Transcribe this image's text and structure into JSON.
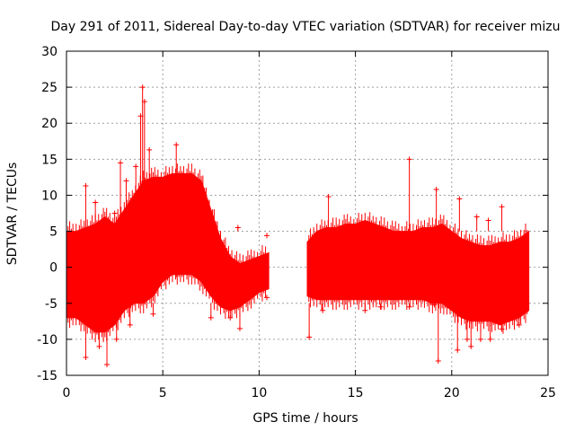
{
  "chart_data": {
    "type": "scatter",
    "title": "Day 291 of 2011, Sidereal Day-to-day VTEC variation (SDTVAR) for receiver mizu",
    "xlabel": "GPS time / hours",
    "ylabel": "SDTVAR / TECUs",
    "xlim": [
      0,
      25
    ],
    "ylim": [
      -15,
      30
    ],
    "xticks": [
      0,
      5,
      10,
      15,
      20,
      25
    ],
    "yticks": [
      -15,
      -10,
      -5,
      0,
      5,
      10,
      15,
      20,
      25,
      30
    ],
    "grid": true,
    "marker": "+",
    "series_color": "#ff0000",
    "series": [
      {
        "name": "SDTVAR",
        "segments": [
          {
            "x": [
              0.0,
              0.5,
              1.0,
              1.5,
              2.0,
              2.5,
              3.0,
              3.5,
              4.0,
              4.5,
              5.0,
              5.5,
              6.0,
              6.5,
              7.0,
              7.5,
              8.0,
              8.5,
              9.0,
              9.5,
              10.0,
              10.5
            ],
            "upper": [
              5,
              5,
              5.5,
              6,
              7,
              6,
              8,
              10,
              12,
              12.5,
              12.5,
              13,
              13,
              13,
              12,
              8,
              4,
              1.5,
              0.5,
              1,
              1.5,
              2
            ],
            "lower": [
              -7,
              -7,
              -8,
              -9,
              -9,
              -8,
              -6,
              -5,
              -5,
              -4,
              -2,
              -1,
              -1,
              -1,
              -2,
              -4,
              -5.5,
              -6,
              -5.5,
              -4.5,
              -3.5,
              -3
            ]
          },
          {
            "x": [
              12.5,
              13.0,
              13.5,
              14.0,
              14.5,
              15.0,
              15.5,
              16.0,
              16.5,
              17.0,
              17.5,
              18.0,
              18.5,
              19.0,
              19.5,
              20.0,
              20.5,
              21.0,
              21.5,
              22.0,
              22.5,
              23.0,
              23.5,
              24.0
            ],
            "upper": [
              3.5,
              5,
              5.5,
              5.5,
              6,
              6,
              6.5,
              6,
              5.5,
              5,
              5,
              5,
              5.5,
              5.5,
              6,
              5,
              4,
              3.5,
              3,
              3,
              3.5,
              3.5,
              4,
              5
            ],
            "lower": [
              -4,
              -4.5,
              -4.5,
              -4.5,
              -4.5,
              -4.5,
              -4.5,
              -4.5,
              -4.5,
              -4.5,
              -4.5,
              -4.5,
              -4.5,
              -5,
              -5,
              -6,
              -7,
              -7.5,
              -7.5,
              -7.5,
              -8,
              -7.5,
              -7,
              -6
            ]
          }
        ],
        "spikes": [
          {
            "x": 0.5,
            "y": 4
          },
          {
            "x": 0.5,
            "y": -7
          },
          {
            "x": 1.0,
            "y": 11.3
          },
          {
            "x": 1.0,
            "y": -12.5
          },
          {
            "x": 1.5,
            "y": 9
          },
          {
            "x": 1.7,
            "y": -11
          },
          {
            "x": 2.1,
            "y": -13.5
          },
          {
            "x": 2.5,
            "y": 7.5
          },
          {
            "x": 2.6,
            "y": -10
          },
          {
            "x": 2.8,
            "y": 14.5
          },
          {
            "x": 3.1,
            "y": 12
          },
          {
            "x": 3.3,
            "y": -8
          },
          {
            "x": 3.6,
            "y": 14
          },
          {
            "x": 3.85,
            "y": 21
          },
          {
            "x": 3.95,
            "y": 25
          },
          {
            "x": 4.05,
            "y": 23
          },
          {
            "x": 4.3,
            "y": 16.3
          },
          {
            "x": 4.5,
            "y": -6.5
          },
          {
            "x": 5.7,
            "y": 17
          },
          {
            "x": 5.7,
            "y": -1
          },
          {
            "x": 7.5,
            "y": -7
          },
          {
            "x": 8.5,
            "y": -7
          },
          {
            "x": 8.9,
            "y": 5.5
          },
          {
            "x": 9.0,
            "y": -8.5
          },
          {
            "x": 10.4,
            "y": 4.4
          },
          {
            "x": 10.4,
            "y": -4.2
          },
          {
            "x": 12.6,
            "y": -9.7
          },
          {
            "x": 13.6,
            "y": 9.8
          },
          {
            "x": 13.3,
            "y": -6
          },
          {
            "x": 15.5,
            "y": -6
          },
          {
            "x": 16.3,
            "y": -5.5
          },
          {
            "x": 17.8,
            "y": 15
          },
          {
            "x": 17.8,
            "y": -5.5
          },
          {
            "x": 19.0,
            "y": -5
          },
          {
            "x": 19.2,
            "y": 10.8
          },
          {
            "x": 19.3,
            "y": -13
          },
          {
            "x": 19.1,
            "y": -5.2
          },
          {
            "x": 20.3,
            "y": -11.5
          },
          {
            "x": 20.4,
            "y": 9.5
          },
          {
            "x": 20.8,
            "y": -10
          },
          {
            "x": 21.0,
            "y": -11
          },
          {
            "x": 21.3,
            "y": 7
          },
          {
            "x": 21.5,
            "y": -10
          },
          {
            "x": 21.9,
            "y": 6.5
          },
          {
            "x": 22.0,
            "y": -10
          },
          {
            "x": 22.6,
            "y": 8.4
          },
          {
            "x": 22.6,
            "y": -8.6
          },
          {
            "x": 23.5,
            "y": -8
          }
        ]
      }
    ]
  }
}
